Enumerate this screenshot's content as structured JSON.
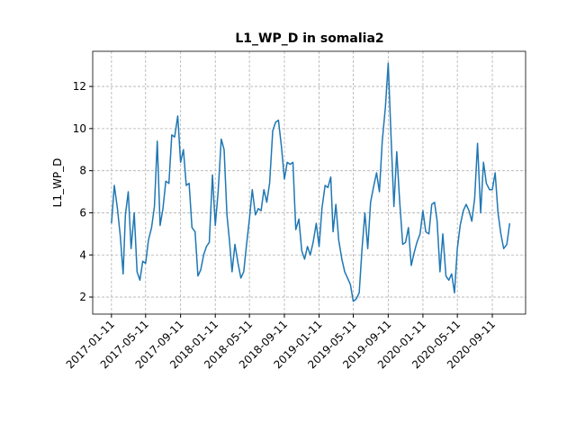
{
  "chart_data": {
    "type": "line",
    "title": "L1_WP_D in somalia2",
    "y_label": "L1_WP_D",
    "x": [
      "2017-01-11",
      "2017-01-21",
      "2017-02-01",
      "2017-02-11",
      "2017-02-21",
      "2017-03-01",
      "2017-03-11",
      "2017-03-21",
      "2017-04-01",
      "2017-04-11",
      "2017-04-21",
      "2017-05-01",
      "2017-05-11",
      "2017-05-21",
      "2017-06-01",
      "2017-06-11",
      "2017-06-21",
      "2017-07-01",
      "2017-07-11",
      "2017-07-21",
      "2017-08-01",
      "2017-08-11",
      "2017-08-21",
      "2017-09-01",
      "2017-09-11",
      "2017-09-21",
      "2017-10-01",
      "2017-10-11",
      "2017-10-21",
      "2017-11-01",
      "2017-11-11",
      "2017-11-21",
      "2017-12-01",
      "2017-12-11",
      "2017-12-21",
      "2018-01-01",
      "2018-01-11",
      "2018-01-21",
      "2018-02-01",
      "2018-02-11",
      "2018-02-21",
      "2018-03-01",
      "2018-03-11",
      "2018-03-21",
      "2018-04-01",
      "2018-04-11",
      "2018-04-21",
      "2018-05-01",
      "2018-05-11",
      "2018-05-21",
      "2018-06-01",
      "2018-06-11",
      "2018-06-21",
      "2018-07-01",
      "2018-07-11",
      "2018-07-21",
      "2018-08-01",
      "2018-08-11",
      "2018-08-21",
      "2018-09-01",
      "2018-09-11",
      "2018-09-21",
      "2018-10-01",
      "2018-10-11",
      "2018-10-21",
      "2018-11-01",
      "2018-11-11",
      "2018-11-21",
      "2018-12-01",
      "2018-12-11",
      "2018-12-21",
      "2019-01-01",
      "2019-01-11",
      "2019-01-21",
      "2019-02-01",
      "2019-02-11",
      "2019-02-21",
      "2019-03-01",
      "2019-03-11",
      "2019-03-21",
      "2019-04-01",
      "2019-04-11",
      "2019-04-21",
      "2019-05-01",
      "2019-05-11",
      "2019-05-21",
      "2019-06-01",
      "2019-06-11",
      "2019-06-21",
      "2019-07-01",
      "2019-07-11",
      "2019-07-21",
      "2019-08-01",
      "2019-08-11",
      "2019-08-21",
      "2019-09-01",
      "2019-09-11",
      "2019-09-21",
      "2019-10-01",
      "2019-10-11",
      "2019-10-21",
      "2019-11-01",
      "2019-11-11",
      "2019-11-21",
      "2019-12-01",
      "2019-12-11",
      "2019-12-21",
      "2020-01-01",
      "2020-01-11",
      "2020-01-21",
      "2020-02-01",
      "2020-02-11",
      "2020-02-21",
      "2020-03-01",
      "2020-03-11",
      "2020-03-21",
      "2020-04-01",
      "2020-04-11",
      "2020-04-21",
      "2020-05-01",
      "2020-05-11",
      "2020-05-21",
      "2020-06-01",
      "2020-06-11",
      "2020-06-21",
      "2020-07-01",
      "2020-07-11",
      "2020-07-21",
      "2020-08-01",
      "2020-08-11",
      "2020-08-21",
      "2020-09-01",
      "2020-09-11",
      "2020-09-21",
      "2020-10-01",
      "2020-10-11",
      "2020-10-21",
      "2020-11-01",
      "2020-11-11"
    ],
    "series": [
      {
        "name": "L1_WP_D",
        "color": "#1f77b4",
        "values": [
          5.5,
          7.3,
          6.2,
          4.9,
          3.1,
          5.9,
          7.0,
          4.3,
          6.0,
          3.2,
          2.8,
          3.7,
          3.6,
          4.7,
          5.3,
          6.3,
          9.4,
          5.4,
          6.2,
          7.5,
          7.4,
          9.7,
          9.6,
          10.6,
          8.4,
          9.0,
          7.3,
          7.4,
          5.3,
          5.1,
          3.0,
          3.3,
          4.0,
          4.4,
          4.6,
          7.8,
          5.4,
          7.0,
          9.5,
          9.0,
          5.9,
          4.8,
          3.2,
          4.5,
          3.6,
          2.9,
          3.2,
          4.5,
          5.7,
          7.1,
          5.9,
          6.2,
          6.1,
          7.1,
          6.5,
          7.4,
          9.9,
          10.3,
          10.4,
          9.1,
          7.6,
          8.4,
          8.3,
          8.4,
          5.2,
          5.7,
          4.2,
          3.8,
          4.4,
          4.0,
          4.6,
          5.5,
          4.4,
          6.2,
          7.3,
          7.2,
          7.7,
          5.1,
          6.4,
          4.7,
          3.8,
          3.2,
          2.9,
          2.6,
          1.8,
          1.9,
          2.2,
          4.3,
          6.0,
          4.3,
          6.5,
          7.2,
          7.9,
          7.0,
          9.4,
          11.0,
          13.1,
          9.6,
          6.3,
          8.9,
          6.6,
          4.5,
          4.6,
          5.3,
          3.5,
          4.1,
          4.6,
          5.0,
          6.1,
          5.1,
          5.0,
          6.4,
          6.5,
          5.6,
          3.2,
          5.0,
          3.0,
          2.8,
          3.1,
          2.2,
          4.3,
          5.4,
          6.1,
          6.4,
          6.1,
          5.6,
          6.7,
          9.3,
          6.0,
          8.4,
          7.4,
          7.1,
          7.1,
          7.9,
          6.0,
          5.0,
          4.3,
          4.5,
          5.5
        ]
      }
    ],
    "xlim": [
      "2016-11-06",
      "2021-01-06"
    ],
    "xticks": [
      "2017-01-11",
      "2017-05-11",
      "2017-09-11",
      "2018-01-11",
      "2018-05-11",
      "2018-09-11",
      "2019-01-11",
      "2019-05-11",
      "2019-09-11",
      "2020-01-11",
      "2020-05-11",
      "2020-09-11"
    ],
    "ylim": [
      1.19,
      13.67
    ],
    "yticks": [
      2,
      4,
      6,
      8,
      10,
      12
    ],
    "grid": true
  }
}
